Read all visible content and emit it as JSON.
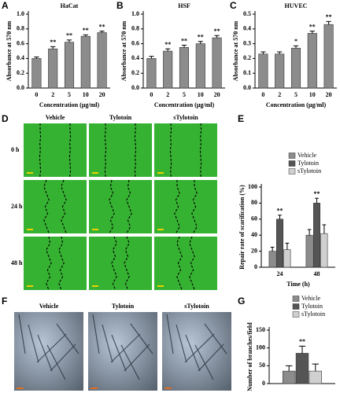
{
  "panels": {
    "letters": [
      "A",
      "B",
      "C",
      "D",
      "E",
      "F",
      "G"
    ],
    "scratch": {
      "columns": [
        "Vehicle",
        "Tylotoin",
        "sTylotoin"
      ],
      "rows": [
        "0 h",
        "24 h",
        "48 h"
      ]
    },
    "tube": {
      "columns": [
        "Vehicle",
        "Tylotoin",
        "sTylotoin"
      ]
    }
  },
  "chart_data": [
    {
      "type": "bar",
      "title": "HaCat",
      "x_label": "Concentration (μg/ml)",
      "y_label": "Absorbance at 570 nm",
      "categories": [
        "0",
        "2",
        "5",
        "10",
        "20"
      ],
      "values": [
        0.4,
        0.53,
        0.62,
        0.7,
        0.75
      ],
      "errors": [
        0.02,
        0.03,
        0.03,
        0.02,
        0.02
      ],
      "annotations": [
        null,
        "**",
        "**",
        "**",
        "**"
      ],
      "color": "#8c8c8c",
      "ylim": [
        0,
        1.0
      ],
      "yticks": [
        {
          "value": 0,
          "label": "0.0"
        },
        {
          "value": 0.2,
          "label": "0.2"
        },
        {
          "value": 0.4,
          "label": "0.4"
        },
        {
          "value": 0.6,
          "label": "0.6"
        },
        {
          "value": 0.8,
          "label": "0.8"
        },
        {
          "value": 1.0,
          "label": "1.0"
        }
      ]
    },
    {
      "type": "bar",
      "title": "HSF",
      "x_label": "Concentration (μg/ml)",
      "y_label": "Absorbance at 570 nm",
      "categories": [
        "0",
        "2",
        "5",
        "10",
        "20"
      ],
      "values": [
        0.4,
        0.5,
        0.55,
        0.6,
        0.68
      ],
      "errors": [
        0.03,
        0.03,
        0.03,
        0.03,
        0.03
      ],
      "annotations": [
        null,
        "**",
        "**",
        "**",
        "**"
      ],
      "color": "#8c8c8c",
      "ylim": [
        0,
        1.0
      ],
      "yticks": [
        {
          "value": 0,
          "label": "0.0"
        },
        {
          "value": 0.2,
          "label": "0.2"
        },
        {
          "value": 0.4,
          "label": "0.4"
        },
        {
          "value": 0.6,
          "label": "0.6"
        },
        {
          "value": 0.8,
          "label": "0.8"
        },
        {
          "value": 1.0,
          "label": "1.0"
        }
      ]
    },
    {
      "type": "bar",
      "title": "HUVEC",
      "x_label": "Concentration (μg/ml)",
      "y_label": "Absorbance at 570 nm",
      "categories": [
        "0",
        "2",
        "5",
        "10",
        "20"
      ],
      "values": [
        0.23,
        0.23,
        0.27,
        0.37,
        0.43
      ],
      "errors": [
        0.015,
        0.015,
        0.015,
        0.015,
        0.02
      ],
      "annotations": [
        null,
        null,
        "*",
        "**",
        "**"
      ],
      "color": "#8c8c8c",
      "ylim": [
        0,
        0.5
      ],
      "yticks": [
        {
          "value": 0,
          "label": "0.0"
        },
        {
          "value": 0.1,
          "label": "0.1"
        },
        {
          "value": 0.2,
          "label": "0.2"
        },
        {
          "value": 0.3,
          "label": "0.3"
        },
        {
          "value": 0.4,
          "label": "0.4"
        },
        {
          "value": 0.5,
          "label": "0.5"
        }
      ]
    },
    {
      "type": "bar",
      "x_label": "Time (h)",
      "y_label": "Repair rate of scarification (%)",
      "categories": [
        "24",
        "48"
      ],
      "series": [
        {
          "name": "Vehicle",
          "color": "#8c8c8c",
          "values": [
            20,
            40
          ],
          "errors": [
            5,
            7
          ],
          "annotations": [
            null,
            null
          ]
        },
        {
          "name": "Tylotoin",
          "color": "#555555",
          "values": [
            60,
            80
          ],
          "errors": [
            5,
            6
          ],
          "annotations": [
            "**",
            "**"
          ]
        },
        {
          "name": "sTylotoin",
          "color": "#d0d0d0",
          "values": [
            22,
            42
          ],
          "errors": [
            8,
            11
          ],
          "annotations": [
            null,
            null
          ]
        }
      ],
      "ylim": [
        0,
        100
      ],
      "yticks": [
        0,
        20,
        40,
        60,
        80,
        100
      ]
    },
    {
      "type": "bar",
      "y_label": "Number of branches/field",
      "categories": [
        null
      ],
      "series": [
        {
          "name": "Vehicle",
          "color": "#8c8c8c",
          "values": [
            35
          ],
          "errors": [
            15
          ],
          "annotations": [
            null
          ]
        },
        {
          "name": "Tylotoin",
          "color": "#555555",
          "values": [
            85
          ],
          "errors": [
            20
          ],
          "annotations": [
            "**"
          ]
        },
        {
          "name": "sTylotoin",
          "color": "#d0d0d0",
          "values": [
            35
          ],
          "errors": [
            20
          ],
          "annotations": [
            null
          ]
        }
      ],
      "ylim": [
        0,
        150
      ],
      "yticks": [
        0,
        50,
        100,
        150
      ]
    }
  ]
}
